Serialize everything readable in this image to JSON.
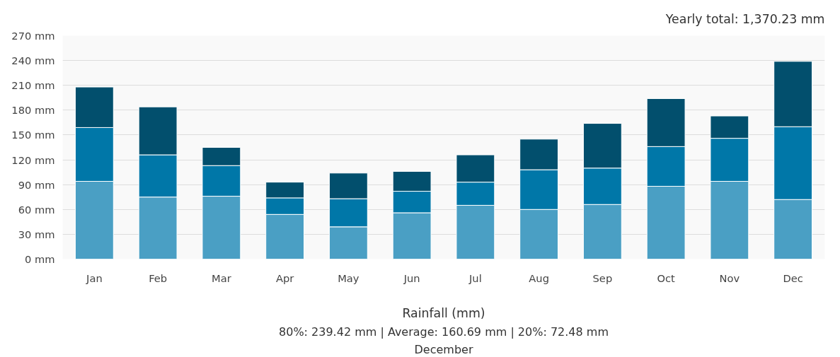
{
  "chart_data": {
    "type": "bar",
    "stacked": true,
    "xlabel": "Rainfall (mm)",
    "categories": [
      "Jan",
      "Feb",
      "Mar",
      "Apr",
      "May",
      "Jun",
      "Jul",
      "Aug",
      "Sep",
      "Oct",
      "Nov",
      "Dec"
    ],
    "series": [
      {
        "color": "#4a9fc4",
        "values": [
          94,
          75,
          76,
          54,
          39,
          56,
          65,
          60,
          66,
          88,
          94,
          72
        ]
      },
      {
        "color": "#0077a8",
        "values": [
          65,
          51,
          37,
          20,
          34,
          26,
          28,
          48,
          44,
          48,
          52,
          88
        ]
      },
      {
        "color": "#024f6d",
        "values": [
          49,
          58,
          22,
          19,
          31,
          24,
          33,
          37,
          54,
          58,
          27,
          79
        ]
      }
    ],
    "ylim": [
      0,
      270
    ],
    "yticks": [
      {
        "value": 0,
        "label": "0 mm"
      },
      {
        "value": 30,
        "label": "30 mm"
      },
      {
        "value": 60,
        "label": "60 mm"
      },
      {
        "value": 90,
        "label": "90 mm"
      },
      {
        "value": 120,
        "label": "120 mm"
      },
      {
        "value": 150,
        "label": "150 mm"
      },
      {
        "value": 180,
        "label": "180 mm"
      },
      {
        "value": 210,
        "label": "210 mm"
      },
      {
        "value": 240,
        "label": "240 mm"
      },
      {
        "value": 270,
        "label": "270 mm"
      }
    ],
    "grid": "y",
    "annotations": [
      "Yearly total: 1,370.23 mm",
      "80%: 239.42 mm | Average: 160.69 mm | 20%: 72.48 mm",
      "December"
    ]
  }
}
